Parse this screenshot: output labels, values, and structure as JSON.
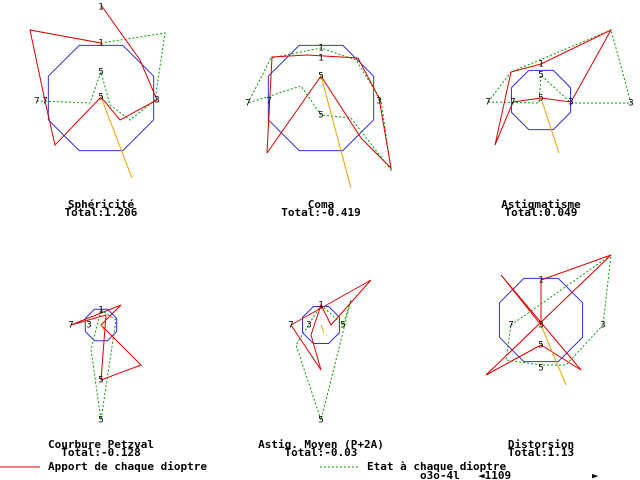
{
  "panels": [
    {
      "title": "Sphéricité",
      "total": "Total:1.206",
      "markers": [
        "1",
        "1",
        "5",
        "5",
        "7",
        "7",
        "3"
      ]
    },
    {
      "title": "Coma",
      "total": "Total:-0.419",
      "markers": [
        "1",
        "1",
        "5",
        "5",
        "7",
        "7",
        "3"
      ]
    },
    {
      "title": "Astigmatisme",
      "total": "Total:0.049",
      "markers": [
        "1",
        "5",
        "5",
        "7",
        "7",
        "3",
        "3"
      ]
    },
    {
      "title": "Courbure Petzval",
      "total": "Total:-0.128",
      "markers": [
        "1",
        "7",
        "3",
        "5",
        "5"
      ]
    },
    {
      "title": "Astig. Moyen (P+2A)",
      "total": "Total:-0.03",
      "markers": [
        "1",
        "7",
        "3",
        "5",
        "5"
      ]
    },
    {
      "title": "Distorsion",
      "total": "Total:1.13",
      "markers": [
        "1",
        "7",
        "3",
        "3",
        "5",
        "5"
      ]
    }
  ],
  "legend": {
    "red": "Apport de chaque dioptre",
    "green": "Etat à chaque dioptre"
  },
  "status": {
    "file": "o3o-4l",
    "counter": "◄1109",
    "next": "►"
  }
}
